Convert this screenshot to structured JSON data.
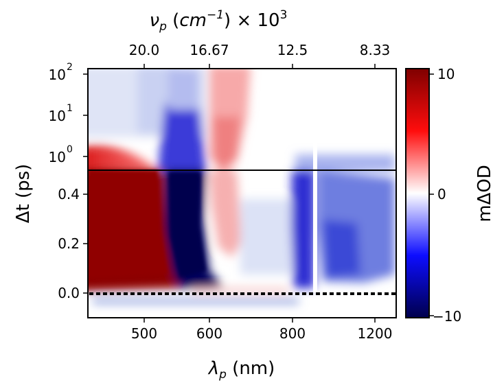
{
  "chart_data": {
    "type": "heatmap",
    "top_axis": {
      "label_symbol": "ν",
      "label_sub": "p",
      "label_units_pre": " (",
      "label_units": "cm",
      "label_units_exp": "−1",
      "label_units_post": ") × 10",
      "label_scale_exp": "3",
      "tick_labels": [
        "20.0",
        "16.67",
        "12.5",
        "8.33"
      ]
    },
    "x_axis": {
      "label_symbol": "λ",
      "label_sub": "p",
      "label_units": " (nm)",
      "tick_labels": [
        "500",
        "600",
        "800",
        "1200"
      ]
    },
    "y_axis_upper": {
      "scale": "log",
      "range": [
        0.5,
        100
      ],
      "tick_base": "10",
      "tick_exponents": [
        "2",
        "1",
        "0"
      ]
    },
    "y_axis_lower": {
      "scale": "linear",
      "range": [
        -0.1,
        0.55
      ],
      "tick_labels": [
        "0.4",
        "0.2",
        "0.0"
      ]
    },
    "y_label": "Δt (ps)",
    "colorbar": {
      "label": "mΔOD",
      "range": [
        -10,
        10
      ],
      "tick_labels": [
        "10",
        "0",
        "−10"
      ],
      "colormap": "seismic",
      "colors": {
        "high": "#8b0000",
        "mid": "#ffffff",
        "low": "#00005a"
      }
    },
    "features": [
      {
        "region": "around 450–520 nm",
        "sign": "positive",
        "magnitude": "≥10 mΔOD (saturated dark red), 0–0.55 ps, decaying to weak red at longer delays"
      },
      {
        "region": "around 560–600 nm",
        "sign": "negative",
        "magnitude": "≤−10 mΔOD (saturated dark blue), 0–1 ps, weakening afterwards"
      },
      {
        "region": "around 640–700 nm",
        "sign": "positive",
        "magnitude": "moderate red, rising after ~0.2 ps and persisting to 100 ps"
      },
      {
        "region": "around 850–1200 nm",
        "sign": "negative",
        "magnitude": "moderate blue, 0–1 ps"
      }
    ],
    "annotations": [
      "dotted line at Δt = 0.0",
      "solid axis break line at Δt ≈ 0.55 ps",
      "white gap near 1000 nm"
    ],
    "grid": false,
    "legend": "colorbar at right"
  }
}
